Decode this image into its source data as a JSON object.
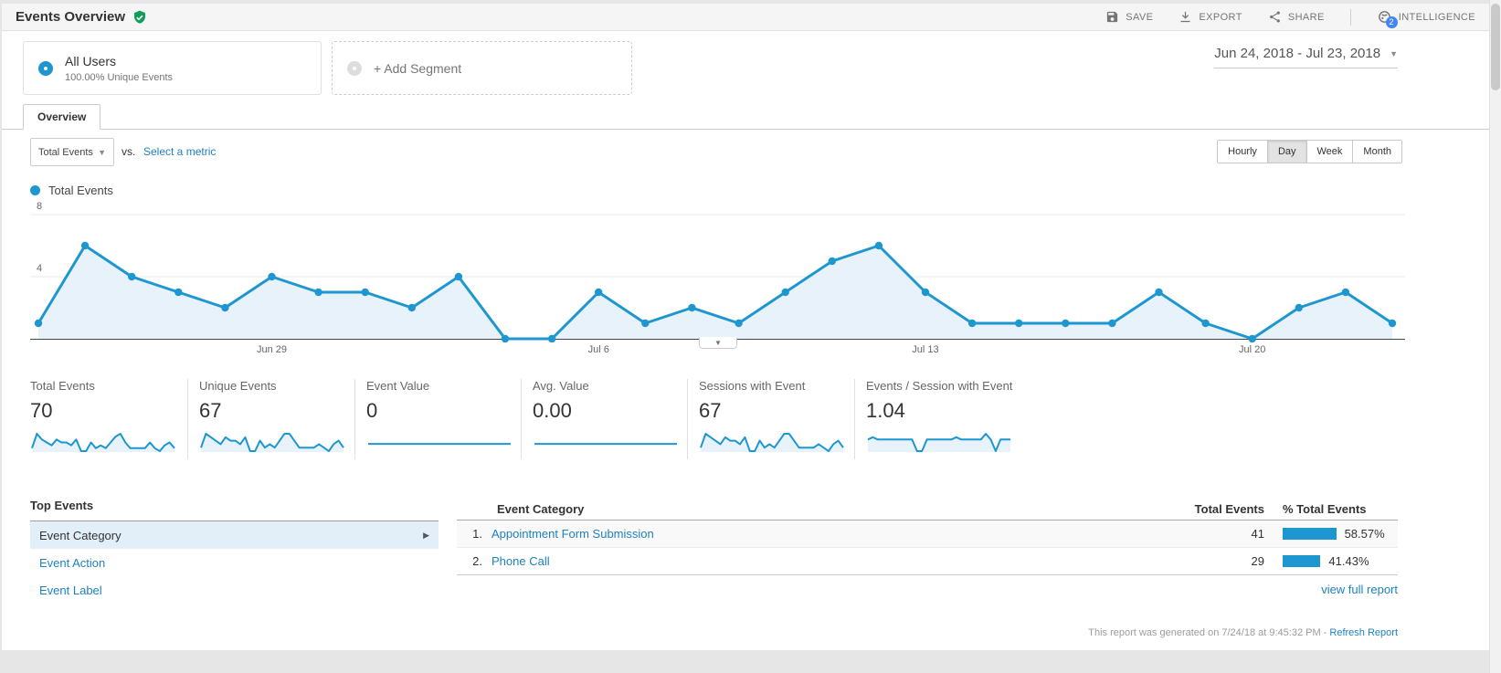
{
  "header": {
    "title": "Events Overview",
    "save": "SAVE",
    "export": "EXPORT",
    "share": "SHARE",
    "intelligence": "INTELLIGENCE",
    "intelligence_badge": "2"
  },
  "segments": {
    "all_users_title": "All Users",
    "all_users_subtitle": "100.00% Unique Events",
    "add_segment": "+ Add Segment",
    "date_range": "Jun 24, 2018 - Jul 23, 2018"
  },
  "tabs": {
    "overview": "Overview"
  },
  "controls": {
    "metric_select": "Total Events",
    "vs": "vs.",
    "select_metric": "Select a metric",
    "granularity": [
      "Hourly",
      "Day",
      "Week",
      "Month"
    ],
    "granularity_active": "Day"
  },
  "legend": {
    "label": "Total Events"
  },
  "chart_data": {
    "type": "area",
    "title": "Total Events",
    "x": [
      "Jun 24",
      "Jun 25",
      "Jun 26",
      "Jun 27",
      "Jun 28",
      "Jun 29",
      "Jun 30",
      "Jul 1",
      "Jul 2",
      "Jul 3",
      "Jul 4",
      "Jul 5",
      "Jul 6",
      "Jul 7",
      "Jul 8",
      "Jul 9",
      "Jul 10",
      "Jul 11",
      "Jul 12",
      "Jul 13",
      "Jul 14",
      "Jul 15",
      "Jul 16",
      "Jul 17",
      "Jul 18",
      "Jul 19",
      "Jul 20",
      "Jul 21",
      "Jul 22",
      "Jul 23"
    ],
    "values": [
      1,
      6,
      4,
      3,
      2,
      4,
      3,
      3,
      2,
      4,
      0,
      0,
      3,
      1,
      2,
      1,
      3,
      5,
      6,
      3,
      1,
      1,
      1,
      1,
      3,
      1,
      0,
      2,
      3,
      1
    ],
    "xlabel": "",
    "ylabel": "",
    "ylim": [
      0,
      8
    ],
    "yticks": [
      {
        "value": 4,
        "label": "4"
      },
      {
        "value": 8,
        "label": "8"
      }
    ],
    "xticks": [
      {
        "i": 5,
        "label": "Jun 29"
      },
      {
        "i": 12,
        "label": "Jul 6"
      },
      {
        "i": 19,
        "label": "Jul 13"
      },
      {
        "i": 26,
        "label": "Jul 20"
      }
    ],
    "grid": true,
    "legend_position": "top-left",
    "line_color": "#1e96d0",
    "fill_color": "#e8f2fa"
  },
  "scorecards": [
    {
      "label": "Total Events",
      "value": "70",
      "spark": [
        1,
        6,
        4,
        3,
        2,
        4,
        3,
        3,
        2,
        4,
        0,
        0,
        3,
        1,
        2,
        1,
        3,
        5,
        6,
        3,
        1,
        1,
        1,
        1,
        3,
        1,
        0,
        2,
        3,
        1
      ]
    },
    {
      "label": "Unique Events",
      "value": "67",
      "spark": [
        1,
        5,
        4,
        3,
        2,
        4,
        3,
        3,
        2,
        4,
        0,
        0,
        3,
        1,
        2,
        1,
        3,
        5,
        5,
        3,
        1,
        1,
        1,
        1,
        2,
        1,
        0,
        2,
        3,
        1
      ]
    },
    {
      "label": "Event Value",
      "value": "0",
      "spark": [
        0,
        0,
        0,
        0,
        0,
        0,
        0,
        0,
        0,
        0,
        0,
        0,
        0,
        0,
        0,
        0,
        0,
        0,
        0,
        0,
        0,
        0,
        0,
        0,
        0,
        0,
        0,
        0,
        0,
        0
      ]
    },
    {
      "label": "Avg. Value",
      "value": "0.00",
      "spark": [
        0,
        0,
        0,
        0,
        0,
        0,
        0,
        0,
        0,
        0,
        0,
        0,
        0,
        0,
        0,
        0,
        0,
        0,
        0,
        0,
        0,
        0,
        0,
        0,
        0,
        0,
        0,
        0,
        0,
        0
      ]
    },
    {
      "label": "Sessions with Event",
      "value": "67",
      "spark": [
        1,
        5,
        4,
        3,
        2,
        4,
        3,
        3,
        2,
        4,
        0,
        0,
        3,
        1,
        2,
        1,
        3,
        5,
        5,
        3,
        1,
        1,
        1,
        1,
        2,
        1,
        0,
        2,
        3,
        1
      ]
    },
    {
      "label": "Events / Session with Event",
      "value": "1.04",
      "spark": [
        1,
        1.2,
        1,
        1,
        1,
        1,
        1,
        1,
        1,
        1,
        0,
        0,
        1,
        1,
        1,
        1,
        1,
        1,
        1.2,
        1,
        1,
        1,
        1,
        1,
        1.5,
        1,
        0,
        1,
        1,
        1
      ]
    }
  ],
  "top_events": {
    "title": "Top Events",
    "items": [
      {
        "label": "Event Category",
        "selected": true
      },
      {
        "label": "Event Action",
        "selected": false
      },
      {
        "label": "Event Label",
        "selected": false
      }
    ]
  },
  "table": {
    "col_category": "Event Category",
    "col_total": "Total Events",
    "col_percent": "% Total Events",
    "rows": [
      {
        "rank": "1.",
        "category": "Appointment Form Submission",
        "total": "41",
        "percent": "58.57%",
        "percent_value": 58.57
      },
      {
        "rank": "2.",
        "category": "Phone Call",
        "total": "29",
        "percent": "41.43%",
        "percent_value": 41.43
      }
    ],
    "view_full_report": "view full report"
  },
  "footer": {
    "generated": "This report was generated on 7/24/18 at 9:45:32 PM -",
    "refresh": "Refresh Report"
  },
  "colors": {
    "accent_blue": "#1e96d0",
    "link_blue": "#1e82c0",
    "selected_row_bg": "#e2eff8",
    "green_shield": "#0f9d58",
    "badge_blue": "#4285f4"
  }
}
